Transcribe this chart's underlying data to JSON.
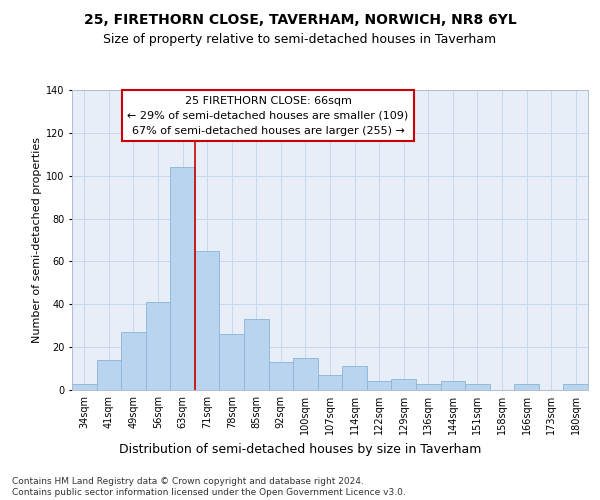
{
  "title1": "25, FIRETHORN CLOSE, TAVERHAM, NORWICH, NR8 6YL",
  "title2": "Size of property relative to semi-detached houses in Taverham",
  "xlabel": "Distribution of semi-detached houses by size in Taverham",
  "ylabel": "Number of semi-detached properties",
  "categories": [
    "34sqm",
    "41sqm",
    "49sqm",
    "56sqm",
    "63sqm",
    "71sqm",
    "78sqm",
    "85sqm",
    "92sqm",
    "100sqm",
    "107sqm",
    "114sqm",
    "122sqm",
    "129sqm",
    "136sqm",
    "144sqm",
    "151sqm",
    "158sqm",
    "166sqm",
    "173sqm",
    "180sqm"
  ],
  "values": [
    3,
    14,
    27,
    41,
    104,
    65,
    26,
    33,
    13,
    15,
    7,
    11,
    4,
    5,
    3,
    4,
    3,
    0,
    3,
    0,
    3
  ],
  "bar_color": "#b8d4ee",
  "bar_edge_color": "#8ab4d8",
  "vline_color": "#cc0000",
  "annotation_line1": "25 FIRETHORN CLOSE: 66sqm",
  "annotation_line2": "← 29% of semi-detached houses are smaller (109)",
  "annotation_line3": "67% of semi-detached houses are larger (255) →",
  "annotation_box_color": "#ffffff",
  "annotation_box_edge": "#cc0000",
  "ylim": [
    0,
    140
  ],
  "yticks": [
    0,
    20,
    40,
    60,
    80,
    100,
    120,
    140
  ],
  "grid_color": "#c8d8ec",
  "bg_color": "#e8eef8",
  "footer": "Contains HM Land Registry data © Crown copyright and database right 2024.\nContains public sector information licensed under the Open Government Licence v3.0.",
  "title1_fontsize": 10,
  "title2_fontsize": 9,
  "xlabel_fontsize": 9,
  "ylabel_fontsize": 8,
  "tick_fontsize": 7,
  "annot_fontsize": 8,
  "footer_fontsize": 6.5
}
